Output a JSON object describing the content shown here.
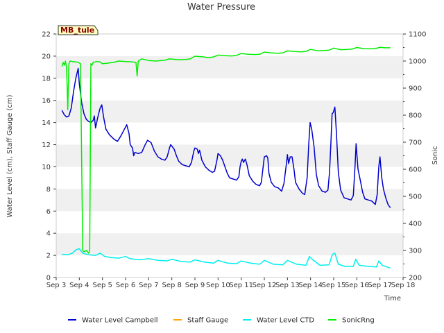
{
  "chart_data": {
    "type": "line",
    "title": "Water Pressure",
    "station_badge": "MB_tule",
    "xlabel": "Time",
    "ylabel_left": "Water Level (cm), Staff Gauge (cm)",
    "ylabel_right": "Sonic",
    "xlim": [
      3,
      18
    ],
    "ylim_left": [
      0,
      22
    ],
    "ylim_right": [
      200,
      1100
    ],
    "x_ticks": [
      {
        "value": 3,
        "label": "Sep 3"
      },
      {
        "value": 4,
        "label": "Sep 4"
      },
      {
        "value": 5,
        "label": "Sep 5"
      },
      {
        "value": 6,
        "label": "Sep 6"
      },
      {
        "value": 7,
        "label": "Sep 7"
      },
      {
        "value": 8,
        "label": "Sep 8"
      },
      {
        "value": 9,
        "label": "Sep 9"
      },
      {
        "value": 10,
        "label": "Sep 10"
      },
      {
        "value": 11,
        "label": "Sep 11"
      },
      {
        "value": 12,
        "label": "Sep 12"
      },
      {
        "value": 13,
        "label": "Sep 13"
      },
      {
        "value": 14,
        "label": "Sep 14"
      },
      {
        "value": 15,
        "label": "Sep 15"
      },
      {
        "value": 16,
        "label": "Sep 16"
      },
      {
        "value": 17,
        "label": "Sep 17"
      },
      {
        "value": 18,
        "label": "Sep 18"
      }
    ],
    "y_ticks_left": [
      0,
      2,
      4,
      6,
      8,
      10,
      12,
      14,
      16,
      18,
      20,
      22
    ],
    "y_ticks_right": [
      200,
      300,
      400,
      500,
      600,
      700,
      800,
      900,
      1000,
      1100
    ],
    "grid": "horizontal bands",
    "legend_position": "bottom",
    "series": [
      {
        "name": "Water Level Campbell",
        "color": "#0000cc",
        "axis": "left",
        "points": [
          [
            3.25,
            15.1
          ],
          [
            3.35,
            14.7
          ],
          [
            3.45,
            14.5
          ],
          [
            3.55,
            14.6
          ],
          [
            3.65,
            15.3
          ],
          [
            3.75,
            16.8
          ],
          [
            3.85,
            18.0
          ],
          [
            3.95,
            18.9
          ],
          [
            4.0,
            17.5
          ],
          [
            4.1,
            15.8
          ],
          [
            4.2,
            14.8
          ],
          [
            4.3,
            14.3
          ],
          [
            4.4,
            14.1
          ],
          [
            4.5,
            14.0
          ],
          [
            4.6,
            14.2
          ],
          [
            4.65,
            14.6
          ],
          [
            4.7,
            13.5
          ],
          [
            4.8,
            14.5
          ],
          [
            4.9,
            15.3
          ],
          [
            4.97,
            15.6
          ],
          [
            5.05,
            14.5
          ],
          [
            5.15,
            13.4
          ],
          [
            5.3,
            12.9
          ],
          [
            5.5,
            12.5
          ],
          [
            5.65,
            12.3
          ],
          [
            5.8,
            12.8
          ],
          [
            5.95,
            13.4
          ],
          [
            6.05,
            13.8
          ],
          [
            6.15,
            13.0
          ],
          [
            6.2,
            12.0
          ],
          [
            6.3,
            11.7
          ],
          [
            6.35,
            11.0
          ],
          [
            6.4,
            11.3
          ],
          [
            6.55,
            11.2
          ],
          [
            6.7,
            11.3
          ],
          [
            6.85,
            12.0
          ],
          [
            6.95,
            12.4
          ],
          [
            7.1,
            12.2
          ],
          [
            7.25,
            11.4
          ],
          [
            7.4,
            10.9
          ],
          [
            7.55,
            10.7
          ],
          [
            7.7,
            10.6
          ],
          [
            7.8,
            10.9
          ],
          [
            7.9,
            11.7
          ],
          [
            7.95,
            12.0
          ],
          [
            8.1,
            11.6
          ],
          [
            8.2,
            11.0
          ],
          [
            8.3,
            10.5
          ],
          [
            8.45,
            10.2
          ],
          [
            8.6,
            10.1
          ],
          [
            8.75,
            10.0
          ],
          [
            8.85,
            10.4
          ],
          [
            8.95,
            11.4
          ],
          [
            9.0,
            11.7
          ],
          [
            9.1,
            11.6
          ],
          [
            9.15,
            11.2
          ],
          [
            9.2,
            11.5
          ],
          [
            9.3,
            10.6
          ],
          [
            9.45,
            10.0
          ],
          [
            9.6,
            9.7
          ],
          [
            9.75,
            9.5
          ],
          [
            9.85,
            9.6
          ],
          [
            9.95,
            10.6
          ],
          [
            10.0,
            11.2
          ],
          [
            10.1,
            11.0
          ],
          [
            10.2,
            10.6
          ],
          [
            10.3,
            10.0
          ],
          [
            10.4,
            9.4
          ],
          [
            10.5,
            9.0
          ],
          [
            10.65,
            8.9
          ],
          [
            10.8,
            8.8
          ],
          [
            10.9,
            9.1
          ],
          [
            10.95,
            10.0
          ],
          [
            11.0,
            10.5
          ],
          [
            11.05,
            10.7
          ],
          [
            11.1,
            10.4
          ],
          [
            11.18,
            10.7
          ],
          [
            11.25,
            10.2
          ],
          [
            11.35,
            9.2
          ],
          [
            11.5,
            8.7
          ],
          [
            11.65,
            8.4
          ],
          [
            11.8,
            8.3
          ],
          [
            11.87,
            8.6
          ],
          [
            11.95,
            10.0
          ],
          [
            12.0,
            10.9
          ],
          [
            12.1,
            11.0
          ],
          [
            12.15,
            10.8
          ],
          [
            12.2,
            9.4
          ],
          [
            12.3,
            8.6
          ],
          [
            12.45,
            8.2
          ],
          [
            12.6,
            8.1
          ],
          [
            12.75,
            7.8
          ],
          [
            12.85,
            8.5
          ],
          [
            12.95,
            10.2
          ],
          [
            13.0,
            11.1
          ],
          [
            13.05,
            10.3
          ],
          [
            13.12,
            10.9
          ],
          [
            13.2,
            10.9
          ],
          [
            13.28,
            9.8
          ],
          [
            13.35,
            8.6
          ],
          [
            13.5,
            8.0
          ],
          [
            13.65,
            7.6
          ],
          [
            13.75,
            7.5
          ],
          [
            13.85,
            9.0
          ],
          [
            13.92,
            12.0
          ],
          [
            13.98,
            14.0
          ],
          [
            14.05,
            13.4
          ],
          [
            14.15,
            11.8
          ],
          [
            14.25,
            9.3
          ],
          [
            14.35,
            8.3
          ],
          [
            14.5,
            7.8
          ],
          [
            14.65,
            7.7
          ],
          [
            14.75,
            7.9
          ],
          [
            14.82,
            9.5
          ],
          [
            14.88,
            12.2
          ],
          [
            14.93,
            14.8
          ],
          [
            14.98,
            14.9
          ],
          [
            15.05,
            15.4
          ],
          [
            15.12,
            13.0
          ],
          [
            15.2,
            9.5
          ],
          [
            15.3,
            7.9
          ],
          [
            15.45,
            7.2
          ],
          [
            15.6,
            7.1
          ],
          [
            15.75,
            7.0
          ],
          [
            15.85,
            7.4
          ],
          [
            15.92,
            10.0
          ],
          [
            15.97,
            12.1
          ],
          [
            16.05,
            9.8
          ],
          [
            16.15,
            8.8
          ],
          [
            16.25,
            7.7
          ],
          [
            16.35,
            7.1
          ],
          [
            16.5,
            7.0
          ],
          [
            16.65,
            6.9
          ],
          [
            16.8,
            6.6
          ],
          [
            16.88,
            7.5
          ],
          [
            16.95,
            10.0
          ],
          [
            17.0,
            10.9
          ],
          [
            17.08,
            9.0
          ],
          [
            17.15,
            8.0
          ],
          [
            17.25,
            7.2
          ],
          [
            17.35,
            6.6
          ],
          [
            17.45,
            6.3
          ]
        ]
      },
      {
        "name": "Staff Gauge",
        "color": "#ffa500",
        "axis": "left",
        "points": []
      },
      {
        "name": "Water Level CTD",
        "color": "#00eeee",
        "axis": "left",
        "points": [
          [
            3.25,
            2.1
          ],
          [
            3.5,
            2.05
          ],
          [
            3.7,
            2.2
          ],
          [
            3.85,
            2.5
          ],
          [
            4.0,
            2.6
          ],
          [
            4.15,
            2.2
          ],
          [
            4.4,
            2.05
          ],
          [
            4.7,
            2.0
          ],
          [
            4.9,
            2.2
          ],
          [
            5.1,
            1.9
          ],
          [
            5.4,
            1.8
          ],
          [
            5.7,
            1.75
          ],
          [
            6.0,
            1.9
          ],
          [
            6.2,
            1.7
          ],
          [
            6.6,
            1.6
          ],
          [
            7.0,
            1.7
          ],
          [
            7.4,
            1.55
          ],
          [
            7.8,
            1.5
          ],
          [
            8.0,
            1.65
          ],
          [
            8.4,
            1.45
          ],
          [
            8.8,
            1.4
          ],
          [
            9.0,
            1.6
          ],
          [
            9.4,
            1.4
          ],
          [
            9.8,
            1.3
          ],
          [
            10.0,
            1.55
          ],
          [
            10.4,
            1.3
          ],
          [
            10.8,
            1.25
          ],
          [
            11.0,
            1.5
          ],
          [
            11.4,
            1.3
          ],
          [
            11.8,
            1.2
          ],
          [
            12.0,
            1.55
          ],
          [
            12.4,
            1.2
          ],
          [
            12.8,
            1.15
          ],
          [
            13.0,
            1.55
          ],
          [
            13.4,
            1.2
          ],
          [
            13.8,
            1.1
          ],
          [
            13.95,
            1.9
          ],
          [
            14.1,
            1.6
          ],
          [
            14.4,
            1.1
          ],
          [
            14.8,
            1.15
          ],
          [
            14.95,
            2.1
          ],
          [
            15.05,
            2.2
          ],
          [
            15.2,
            1.2
          ],
          [
            15.5,
            1.0
          ],
          [
            15.85,
            1.0
          ],
          [
            15.95,
            1.65
          ],
          [
            16.1,
            1.1
          ],
          [
            16.5,
            1.0
          ],
          [
            16.85,
            0.95
          ],
          [
            16.95,
            1.5
          ],
          [
            17.1,
            1.1
          ],
          [
            17.45,
            0.85
          ]
        ]
      },
      {
        "name": "SonicRng",
        "color": "#00ee00",
        "axis": "right",
        "points": [
          [
            3.25,
            980
          ],
          [
            3.3,
            995
          ],
          [
            3.35,
            985
          ],
          [
            3.4,
            1000
          ],
          [
            3.45,
            975
          ],
          [
            3.5,
            820
          ],
          [
            3.55,
            990
          ],
          [
            3.6,
            1000
          ],
          [
            3.7,
            998
          ],
          [
            3.85,
            997
          ],
          [
            3.95,
            995
          ],
          [
            4.05,
            990
          ],
          [
            4.15,
            300
          ],
          [
            4.2,
            295
          ],
          [
            4.3,
            300
          ],
          [
            4.4,
            290
          ],
          [
            4.45,
            300
          ],
          [
            4.5,
            990
          ],
          [
            4.55,
            985
          ],
          [
            4.6,
            995
          ],
          [
            4.75,
            998
          ],
          [
            4.9,
            997
          ],
          [
            5.0,
            990
          ],
          [
            5.2,
            992
          ],
          [
            5.5,
            995
          ],
          [
            5.7,
            1000
          ],
          [
            6.0,
            998
          ],
          [
            6.3,
            997
          ],
          [
            6.45,
            995
          ],
          [
            6.5,
            945
          ],
          [
            6.55,
            1000
          ],
          [
            6.7,
            1008
          ],
          [
            7.0,
            1002
          ],
          [
            7.3,
            1000
          ],
          [
            7.7,
            1003
          ],
          [
            7.9,
            1008
          ],
          [
            8.3,
            1005
          ],
          [
            8.6,
            1006
          ],
          [
            8.8,
            1008
          ],
          [
            9.0,
            1018
          ],
          [
            9.3,
            1016
          ],
          [
            9.6,
            1012
          ],
          [
            9.8,
            1015
          ],
          [
            10.0,
            1022
          ],
          [
            10.3,
            1020
          ],
          [
            10.6,
            1019
          ],
          [
            10.8,
            1021
          ],
          [
            11.0,
            1028
          ],
          [
            11.3,
            1025
          ],
          [
            11.6,
            1024
          ],
          [
            11.8,
            1025
          ],
          [
            12.0,
            1033
          ],
          [
            12.3,
            1030
          ],
          [
            12.6,
            1029
          ],
          [
            12.8,
            1030
          ],
          [
            13.0,
            1038
          ],
          [
            13.3,
            1035
          ],
          [
            13.6,
            1034
          ],
          [
            13.8,
            1036
          ],
          [
            14.0,
            1043
          ],
          [
            14.3,
            1038
          ],
          [
            14.6,
            1039
          ],
          [
            14.8,
            1040
          ],
          [
            15.0,
            1048
          ],
          [
            15.3,
            1042
          ],
          [
            15.6,
            1043
          ],
          [
            15.8,
            1044
          ],
          [
            16.0,
            1050
          ],
          [
            16.3,
            1046
          ],
          [
            16.6,
            1045
          ],
          [
            16.8,
            1046
          ],
          [
            17.0,
            1051
          ],
          [
            17.2,
            1049
          ],
          [
            17.45,
            1049
          ]
        ]
      }
    ]
  }
}
